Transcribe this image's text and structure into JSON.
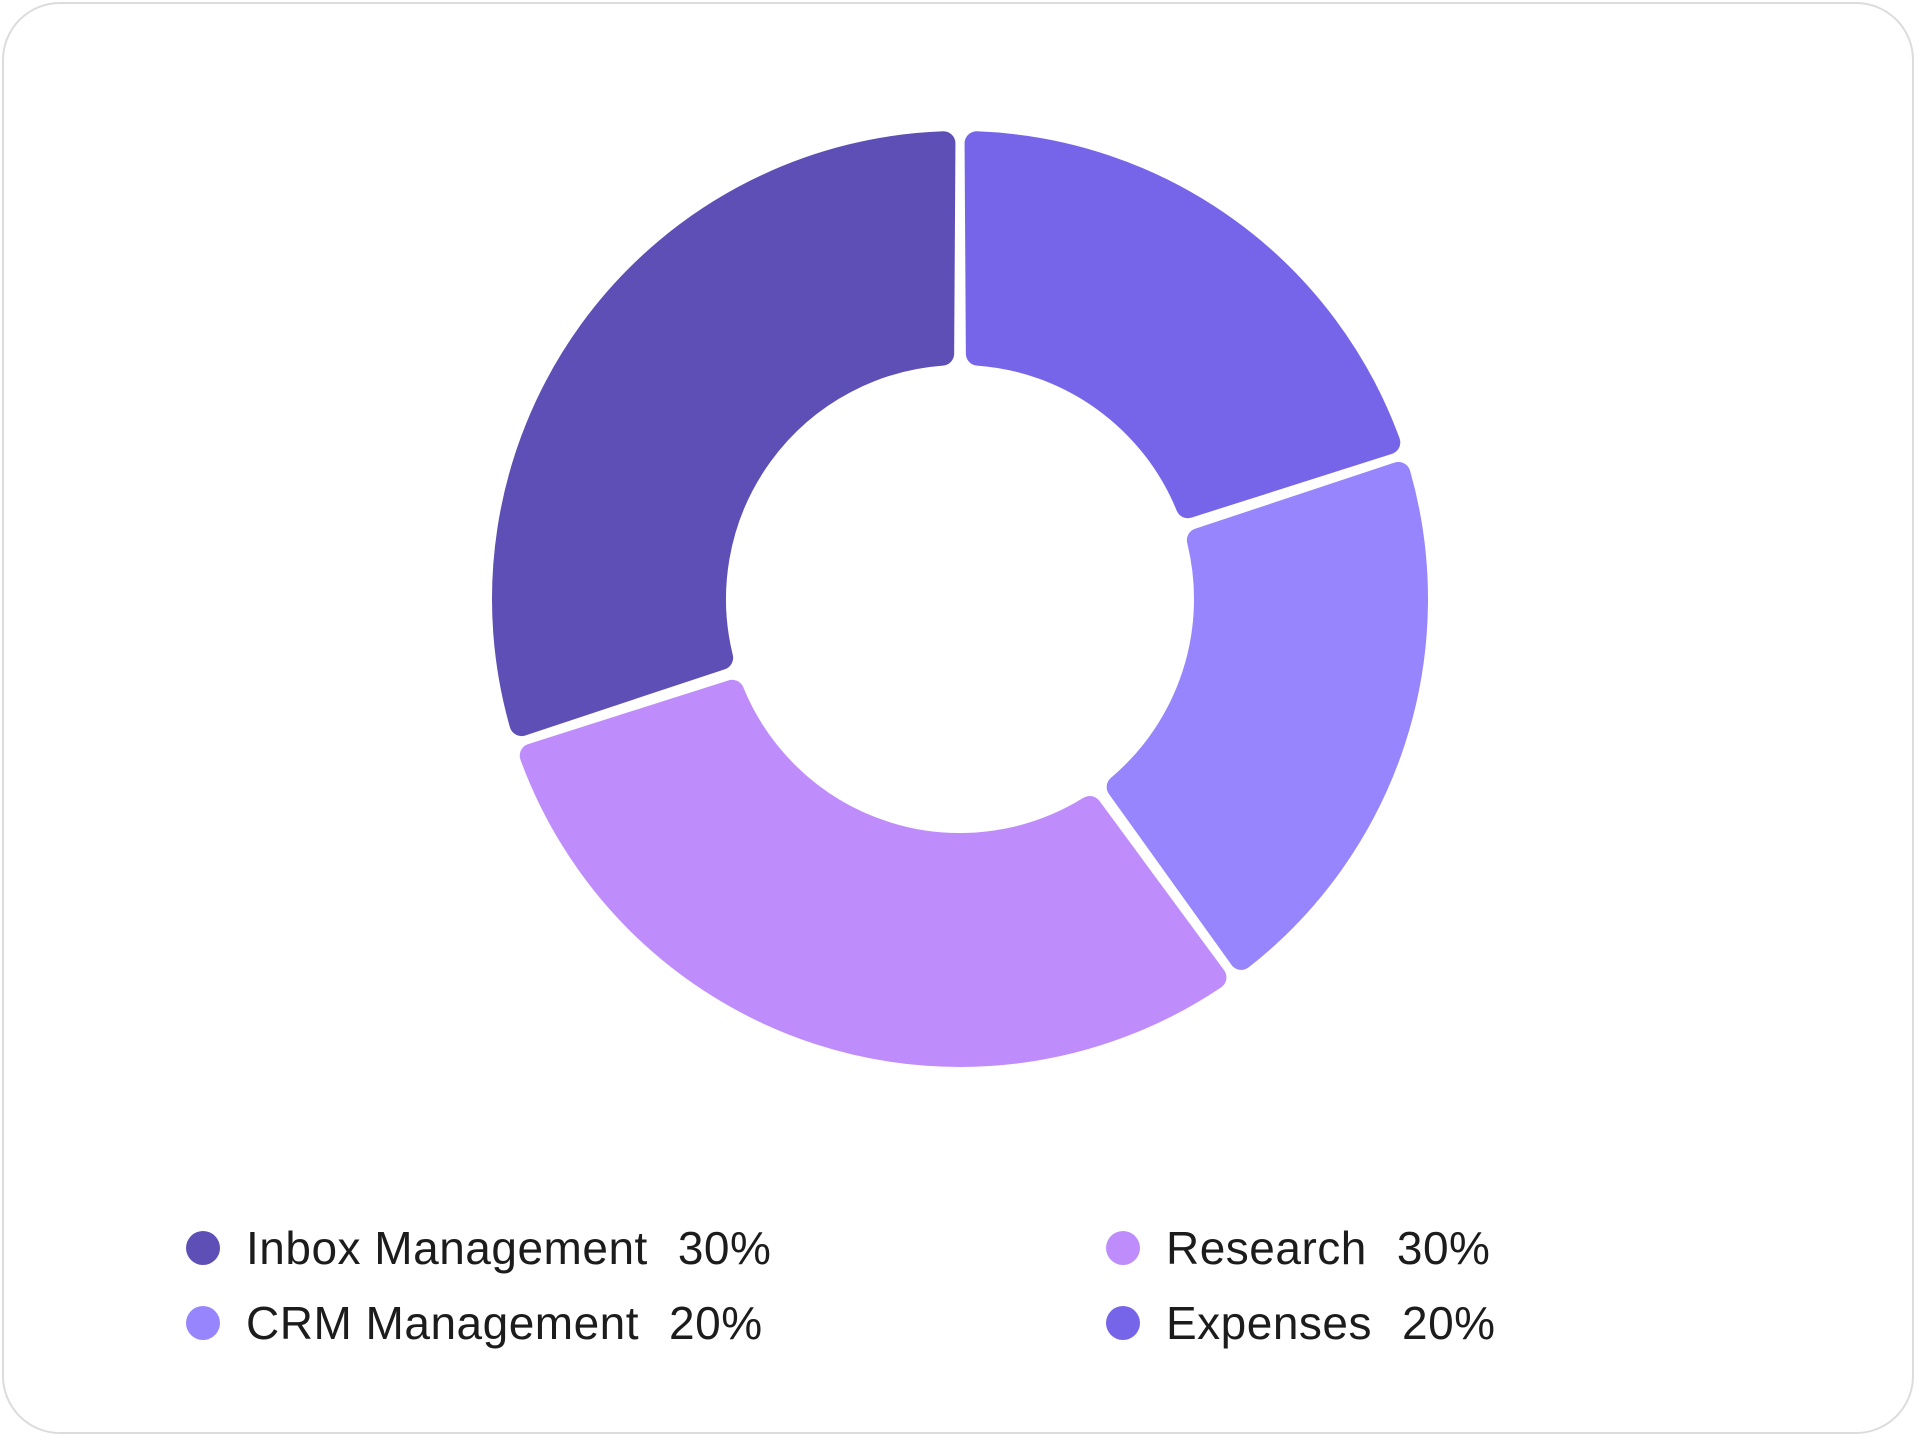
{
  "chart_data": {
    "type": "pie",
    "style": "donut",
    "slices": [
      {
        "label": "Expenses",
        "value": 20,
        "display": "20%",
        "color": "#7765E9"
      },
      {
        "label": "CRM Management",
        "value": 20,
        "display": "20%",
        "color": "#9685FC"
      },
      {
        "label": "Research",
        "value": 30,
        "display": "30%",
        "color": "#BF8DFB"
      },
      {
        "label": "Inbox Management",
        "value": 30,
        "display": "30%",
        "color": "#5D4FB5"
      }
    ],
    "legend": {
      "placement": "bottom",
      "items": [
        {
          "label": "Inbox Management",
          "value": "30%",
          "color": "#5D4FB5"
        },
        {
          "label": "CRM Management",
          "value": "20%",
          "color": "#9685FC"
        },
        {
          "label": "Research",
          "value": "30%",
          "color": "#BF8DFB"
        },
        {
          "label": "Expenses",
          "value": "20%",
          "color": "#7765E9"
        }
      ]
    }
  }
}
